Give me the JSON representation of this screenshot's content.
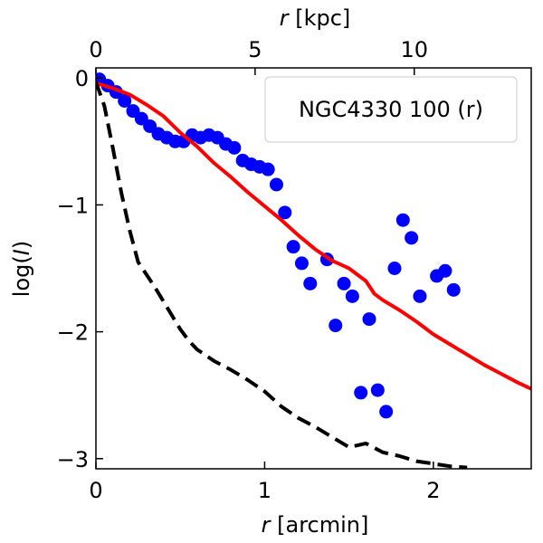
{
  "chart_data": {
    "type": "scatter",
    "title": "",
    "xlabel_var": "r",
    "xlabel_unit": " [arcmin]",
    "top_xlabel_var": "r",
    "top_xlabel_unit": " [kpc]",
    "ylabel_pre": "log(",
    "ylabel_var": "I",
    "ylabel_post": ")",
    "xlim": [
      0,
      2.58
    ],
    "ylim": [
      -3.08,
      0.08
    ],
    "xticks": [
      0,
      1,
      2
    ],
    "xtick_labels": [
      "0",
      "1",
      "2"
    ],
    "yticks": [
      0,
      -1,
      -2,
      -3
    ],
    "ytick_labels": [
      "0",
      "−1",
      "−2",
      "−3"
    ],
    "top_xticks_kpc": [
      0,
      5,
      10
    ],
    "top_xtick_labels": [
      "0",
      "5",
      "10"
    ],
    "kpc_per_arcmin": 5.3,
    "legend": {
      "label": "NGC4330 100 (r)",
      "position": "top-right"
    },
    "colors": {
      "points": "#0000ff",
      "model": "#ff0000",
      "psf": "#000000"
    },
    "series": [
      {
        "name": "data",
        "kind": "points",
        "x": [
          0.02,
          0.07,
          0.12,
          0.17,
          0.22,
          0.27,
          0.32,
          0.37,
          0.42,
          0.47,
          0.52,
          0.57,
          0.62,
          0.67,
          0.72,
          0.77,
          0.82,
          0.87,
          0.92,
          0.97,
          1.02,
          1.07,
          1.12,
          1.17,
          1.22,
          1.27,
          1.37,
          1.42,
          1.47,
          1.52,
          1.57,
          1.62,
          1.67,
          1.72,
          1.77,
          1.82,
          1.87,
          1.92,
          2.02,
          2.07,
          2.12
        ],
        "y": [
          -0.01,
          -0.06,
          -0.11,
          -0.18,
          -0.26,
          -0.32,
          -0.38,
          -0.44,
          -0.47,
          -0.5,
          -0.5,
          -0.45,
          -0.47,
          -0.45,
          -0.47,
          -0.52,
          -0.55,
          -0.65,
          -0.68,
          -0.7,
          -0.72,
          -0.84,
          -1.06,
          -1.33,
          -1.46,
          -1.62,
          -1.43,
          -1.95,
          -1.62,
          -1.72,
          -2.48,
          -1.9,
          -2.46,
          -2.63,
          -1.5,
          -1.12,
          -1.26,
          -1.72,
          -1.56,
          -1.52,
          -1.67
        ]
      },
      {
        "name": "model",
        "kind": "line",
        "x": [
          0.0,
          0.1,
          0.2,
          0.3,
          0.4,
          0.5,
          0.6,
          0.7,
          0.8,
          0.9,
          1.0,
          1.1,
          1.2,
          1.3,
          1.4,
          1.5,
          1.55,
          1.6,
          1.65,
          1.7,
          1.8,
          1.9,
          2.0,
          2.1,
          2.2,
          2.3,
          2.4,
          2.5,
          2.58
        ],
        "y": [
          -0.04,
          -0.08,
          -0.13,
          -0.21,
          -0.3,
          -0.43,
          -0.54,
          -0.67,
          -0.78,
          -0.9,
          -1.01,
          -1.12,
          -1.24,
          -1.35,
          -1.44,
          -1.5,
          -1.55,
          -1.6,
          -1.7,
          -1.75,
          -1.83,
          -1.92,
          -2.02,
          -2.1,
          -2.18,
          -2.26,
          -2.33,
          -2.4,
          -2.45
        ]
      },
      {
        "name": "psf",
        "kind": "dashed-line",
        "x": [
          0.0,
          0.05,
          0.1,
          0.15,
          0.2,
          0.25,
          0.3,
          0.35,
          0.4,
          0.45,
          0.5,
          0.55,
          0.6,
          0.7,
          0.8,
          0.9,
          1.0,
          1.1,
          1.2,
          1.3,
          1.4,
          1.5,
          1.6,
          1.7,
          1.8,
          1.9,
          2.0,
          2.1,
          2.2
        ],
        "y": [
          -0.03,
          -0.22,
          -0.55,
          -0.9,
          -1.2,
          -1.45,
          -1.55,
          -1.65,
          -1.76,
          -1.87,
          -1.98,
          -2.07,
          -2.14,
          -2.23,
          -2.3,
          -2.38,
          -2.47,
          -2.59,
          -2.68,
          -2.75,
          -2.83,
          -2.91,
          -2.88,
          -2.95,
          -2.98,
          -3.02,
          -3.04,
          -3.06,
          -3.07
        ]
      }
    ]
  }
}
